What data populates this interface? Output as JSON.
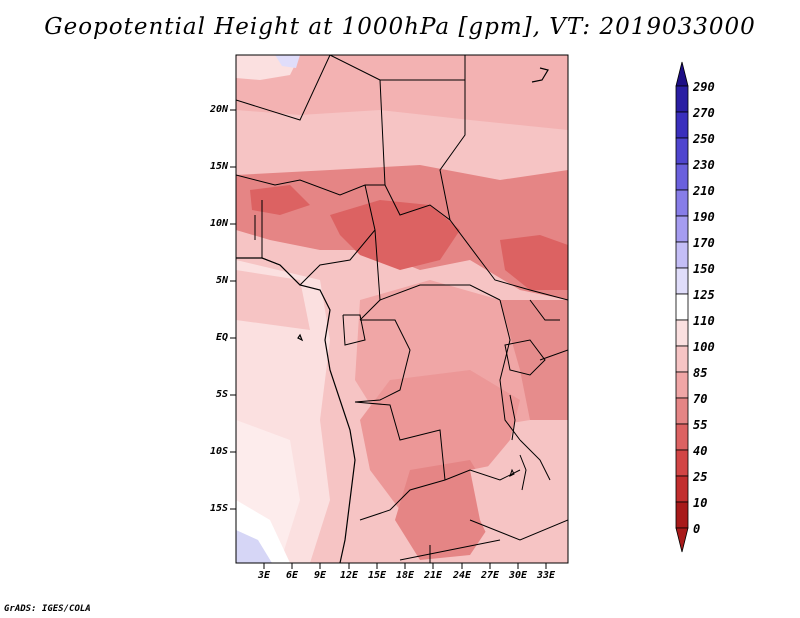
{
  "title": "Geopotential Height at 1000hPa [gpm], VT: 2019033000",
  "credit": "GrADS: IGES/COLA",
  "map": {
    "lat_labels": [
      "20N",
      "15N",
      "10N",
      "5N",
      "EQ",
      "5S",
      "10S",
      "15S"
    ],
    "lon_labels": [
      "3E",
      "6E",
      "9E",
      "12E",
      "15E",
      "18E",
      "21E",
      "24E",
      "27E",
      "30E",
      "33E"
    ]
  },
  "colorbar": {
    "levels": [
      "290",
      "270",
      "250",
      "230",
      "210",
      "190",
      "170",
      "150",
      "125",
      "110",
      "100",
      "85",
      "70",
      "55",
      "40",
      "25",
      "10",
      "0"
    ],
    "colors": [
      "#1d0e85",
      "#2a1ea3",
      "#3a2fbd",
      "#4f45cf",
      "#6a60dd",
      "#877de8",
      "#a59cf0",
      "#c4bef6",
      "#e0ddfa",
      "#ffffff",
      "#fbe0e0",
      "#f6c4c4",
      "#f0a6a6",
      "#e58585",
      "#dc6262",
      "#d24545",
      "#c22e2e",
      "#a81a1a"
    ]
  }
}
